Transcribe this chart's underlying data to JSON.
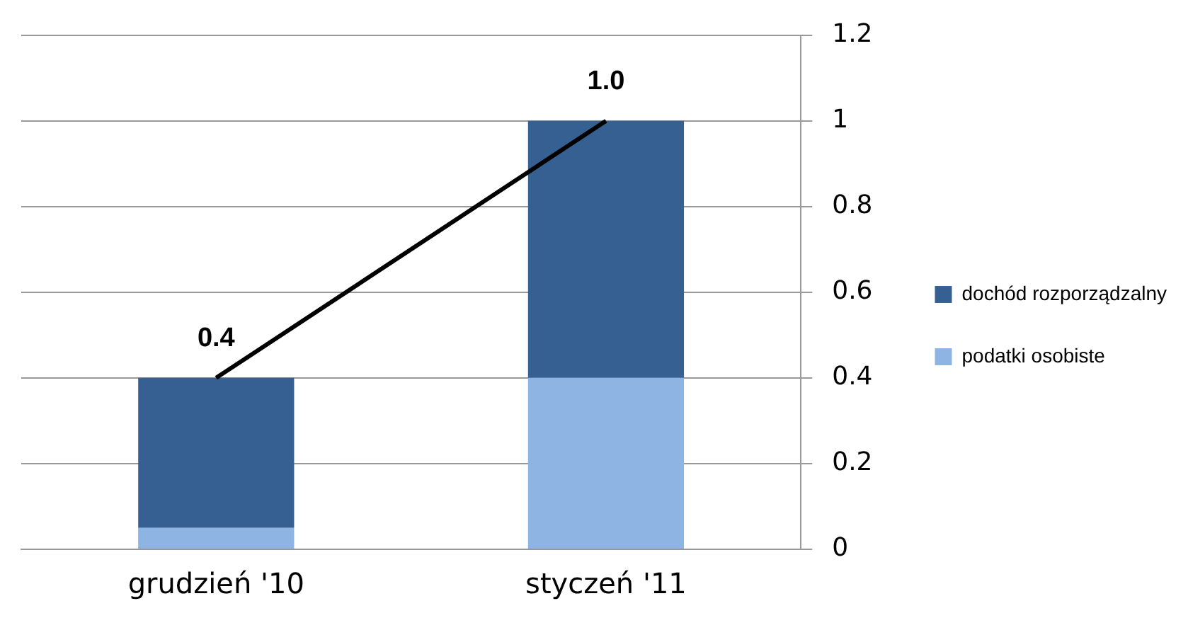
{
  "chart_data": {
    "type": "bar",
    "categories": [
      "grudzień '10",
      "styczeń '11"
    ],
    "series": [
      {
        "name": "podatki osobiste",
        "color": "#8db4e2",
        "values": [
          0.05,
          0.4
        ]
      },
      {
        "name": "dochód rozporządzalny",
        "color": "#366092",
        "values": [
          0.35,
          0.6
        ]
      },
      {
        "type": "line",
        "color": "#000000",
        "values": [
          0.4,
          1.0
        ],
        "value_labels": [
          "0.4",
          "1.0"
        ]
      }
    ],
    "stacked": true,
    "ylim": [
      0,
      1.2
    ],
    "yticks": [
      0,
      0.2,
      0.4,
      0.6,
      0.8,
      1,
      1.2
    ],
    "grid": "y",
    "legend": "right",
    "marker": "none"
  }
}
